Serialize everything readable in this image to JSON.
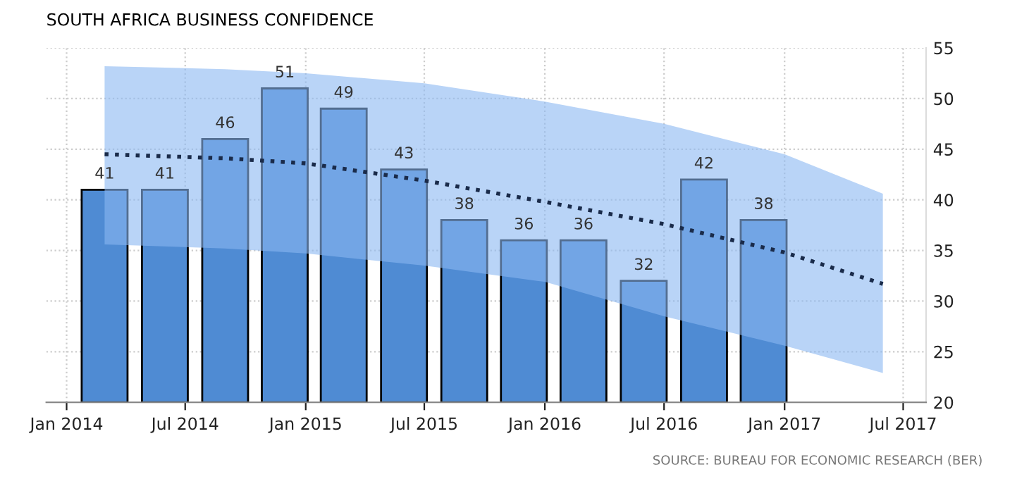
{
  "chart_data": {
    "type": "bar",
    "title": "SOUTH AFRICA BUSINESS CONFIDENCE",
    "x": [
      "2014-02-28",
      "2014-05-31",
      "2014-08-31",
      "2014-11-30",
      "2015-02-28",
      "2015-05-31",
      "2015-08-31",
      "2015-11-30",
      "2016-02-29",
      "2016-05-31",
      "2016-08-31",
      "2016-11-30"
    ],
    "series": [
      {
        "color": "#4f8bd3",
        "values": [
          41,
          41,
          46,
          51,
          49,
          43,
          38,
          36,
          36,
          32,
          42,
          38
        ],
        "value_labels": [
          "41",
          "41",
          "46",
          "51",
          "49",
          "43",
          "38",
          "36",
          "36",
          "32",
          "42",
          "38"
        ]
      },
      {
        "type": "line",
        "color": "#1a2b4a",
        "line_style": "dotted",
        "marker": "none",
        "x": [
          "2014-02-28",
          "2014-08-31",
          "2015-01-01",
          "2015-07-01",
          "2016-01-01",
          "2016-07-01",
          "2017-01-01",
          "2017-05-31"
        ],
        "values": [
          44.5,
          44.1,
          43.6,
          41.9,
          39.8,
          37.6,
          34.8,
          31.7
        ],
        "upper": [
          53.2,
          52.9,
          52.5,
          51.5,
          49.7,
          47.5,
          44.5,
          40.6
        ],
        "lower": [
          35.6,
          35.2,
          34.7,
          33.5,
          31.9,
          28.5,
          25.6,
          22.9
        ]
      }
    ],
    "xlim": [
      "2013-12-01",
      "2017-08-05"
    ],
    "xticks": [
      {
        "value": "2014-01-01",
        "label": "Jan 2014"
      },
      {
        "value": "2014-07-01",
        "label": "Jul 2014"
      },
      {
        "value": "2015-01-01",
        "label": "Jan 2015"
      },
      {
        "value": "2015-07-01",
        "label": "Jul 2015"
      },
      {
        "value": "2016-01-01",
        "label": "Jan 2016"
      },
      {
        "value": "2016-07-01",
        "label": "Jul 2016"
      },
      {
        "value": "2017-01-01",
        "label": "Jan 2017"
      },
      {
        "value": "2017-07-01",
        "label": "Jul 2017"
      }
    ],
    "ylim": [
      20,
      55
    ],
    "yticks": [
      20,
      25,
      30,
      35,
      40,
      45,
      50,
      55
    ],
    "grid": true,
    "legend": false,
    "annotations": [
      "SOURCE: BUREAU FOR ECONOMIC RESEARCH (BER)"
    ]
  }
}
